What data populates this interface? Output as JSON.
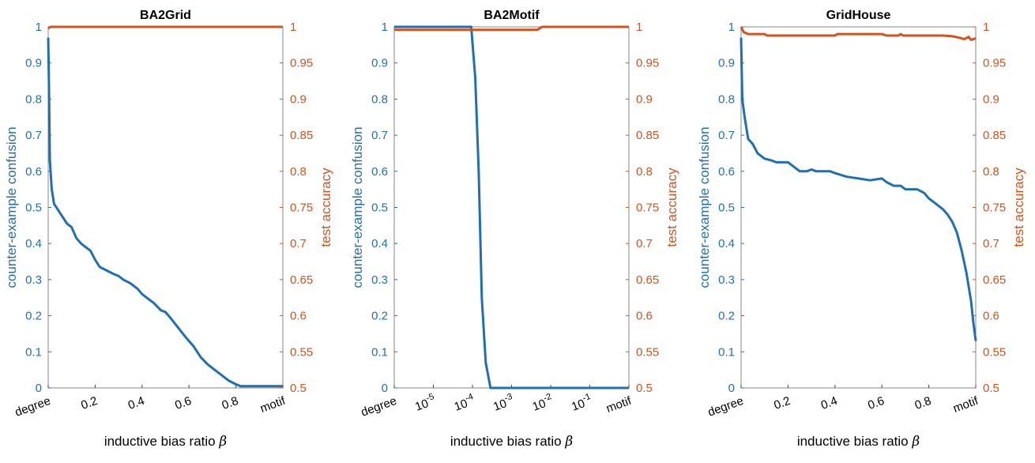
{
  "colors": {
    "confusion": "#1f6fb4",
    "accuracy": "#d4521c",
    "axis": "#888888"
  },
  "chart_data": [
    {
      "type": "line",
      "title": "BA2Grid",
      "xlabel": "inductive bias ratio",
      "xlabel_symbol": "β",
      "ylabel_left": "counter-example confusion",
      "ylabel_right": "test accuracy",
      "xscale": "linear",
      "xlim": [
        0,
        1
      ],
      "ylim_left": [
        0,
        1
      ],
      "ylim_right": [
        0.5,
        1
      ],
      "xticks": [
        {
          "v": 0,
          "label": "degree"
        },
        {
          "v": 0.2,
          "label": "0.2"
        },
        {
          "v": 0.4,
          "label": "0.4"
        },
        {
          "v": 0.6,
          "label": "0.6"
        },
        {
          "v": 0.8,
          "label": "0.8"
        },
        {
          "v": 1,
          "label": "motif"
        }
      ],
      "yticks_left": [
        "0",
        "0.1",
        "0.2",
        "0.3",
        "0.4",
        "0.5",
        "0.6",
        "0.7",
        "0.8",
        "0.9",
        "1"
      ],
      "yticks_right": [
        "0.5",
        "0.55",
        "0.6",
        "0.65",
        "0.7",
        "0.75",
        "0.8",
        "0.85",
        "0.9",
        "0.95",
        "1"
      ],
      "confusion": [
        [
          0,
          0.97
        ],
        [
          0.003,
          0.85
        ],
        [
          0.007,
          0.63
        ],
        [
          0.015,
          0.55
        ],
        [
          0.025,
          0.51
        ],
        [
          0.04,
          0.495
        ],
        [
          0.06,
          0.475
        ],
        [
          0.08,
          0.455
        ],
        [
          0.1,
          0.445
        ],
        [
          0.12,
          0.415
        ],
        [
          0.14,
          0.4
        ],
        [
          0.16,
          0.39
        ],
        [
          0.18,
          0.38
        ],
        [
          0.2,
          0.355
        ],
        [
          0.22,
          0.335
        ],
        [
          0.25,
          0.325
        ],
        [
          0.28,
          0.315
        ],
        [
          0.3,
          0.31
        ],
        [
          0.32,
          0.3
        ],
        [
          0.35,
          0.29
        ],
        [
          0.38,
          0.275
        ],
        [
          0.4,
          0.26
        ],
        [
          0.42,
          0.25
        ],
        [
          0.45,
          0.235
        ],
        [
          0.48,
          0.215
        ],
        [
          0.5,
          0.21
        ],
        [
          0.52,
          0.195
        ],
        [
          0.55,
          0.17
        ],
        [
          0.58,
          0.145
        ],
        [
          0.6,
          0.13
        ],
        [
          0.62,
          0.115
        ],
        [
          0.65,
          0.085
        ],
        [
          0.68,
          0.065
        ],
        [
          0.7,
          0.055
        ],
        [
          0.72,
          0.045
        ],
        [
          0.75,
          0.03
        ],
        [
          0.77,
          0.02
        ],
        [
          0.8,
          0.01
        ],
        [
          0.82,
          0.005
        ],
        [
          1,
          0.005
        ]
      ],
      "accuracy": [
        [
          0,
          0.998
        ],
        [
          0.01,
          1.0
        ],
        [
          1,
          1.0
        ]
      ]
    },
    {
      "type": "line",
      "title": "BA2Motif",
      "xlabel": "inductive bias ratio",
      "xlabel_symbol": "β",
      "ylabel_left": "counter-example confusion",
      "ylabel_right": "test accuracy",
      "xscale": "log",
      "xlim": [
        0,
        1
      ],
      "ylim_left": [
        0,
        1
      ],
      "ylim_right": [
        0.5,
        1
      ],
      "xticks": [
        {
          "v": 0,
          "label": "degree"
        },
        {
          "v": 0.1667,
          "label": "10",
          "exp": "-5"
        },
        {
          "v": 0.3333,
          "label": "10",
          "exp": "-4"
        },
        {
          "v": 0.5,
          "label": "10",
          "exp": "-3"
        },
        {
          "v": 0.6667,
          "label": "10",
          "exp": "-2"
        },
        {
          "v": 0.8333,
          "label": "10",
          "exp": "-1"
        },
        {
          "v": 1,
          "label": "motif"
        }
      ],
      "yticks_left": [
        "0",
        "0.1",
        "0.2",
        "0.3",
        "0.4",
        "0.5",
        "0.6",
        "0.7",
        "0.8",
        "0.9",
        "1"
      ],
      "yticks_right": [
        "0.5",
        "0.55",
        "0.6",
        "0.65",
        "0.7",
        "0.75",
        "0.8",
        "0.85",
        "0.9",
        "0.95",
        "1"
      ],
      "confusion": [
        [
          0,
          1.0
        ],
        [
          0.328,
          1.0
        ],
        [
          0.345,
          0.86
        ],
        [
          0.36,
          0.6
        ],
        [
          0.373,
          0.25
        ],
        [
          0.39,
          0.07
        ],
        [
          0.41,
          0.0
        ],
        [
          1,
          0.0
        ]
      ],
      "accuracy": [
        [
          0,
          0.996
        ],
        [
          0.61,
          0.996
        ],
        [
          0.63,
          1.0
        ],
        [
          1,
          1.0
        ]
      ]
    },
    {
      "type": "line",
      "title": "GridHouse",
      "xlabel": "inductive bias ratio",
      "xlabel_symbol": "β",
      "ylabel_left": "counter-example confusion",
      "ylabel_right": "test accuracy",
      "xscale": "linear",
      "xlim": [
        0,
        1
      ],
      "ylim_left": [
        0,
        1
      ],
      "ylim_right": [
        0.5,
        1
      ],
      "xticks": [
        {
          "v": 0,
          "label": "degree"
        },
        {
          "v": 0.2,
          "label": "0.2"
        },
        {
          "v": 0.4,
          "label": "0.4"
        },
        {
          "v": 0.6,
          "label": "0.6"
        },
        {
          "v": 0.8,
          "label": "0.8"
        },
        {
          "v": 1,
          "label": "motif"
        }
      ],
      "yticks_left": [
        "0",
        "0.1",
        "0.2",
        "0.3",
        "0.4",
        "0.5",
        "0.6",
        "0.7",
        "0.8",
        "0.9",
        "1"
      ],
      "yticks_right": [
        "0.5",
        "0.55",
        "0.6",
        "0.65",
        "0.7",
        "0.75",
        "0.8",
        "0.85",
        "0.9",
        "0.95",
        "1"
      ],
      "confusion": [
        [
          0,
          0.97
        ],
        [
          0.005,
          0.8
        ],
        [
          0.015,
          0.75
        ],
        [
          0.03,
          0.69
        ],
        [
          0.05,
          0.675
        ],
        [
          0.07,
          0.65
        ],
        [
          0.1,
          0.635
        ],
        [
          0.13,
          0.63
        ],
        [
          0.15,
          0.625
        ],
        [
          0.2,
          0.625
        ],
        [
          0.22,
          0.615
        ],
        [
          0.25,
          0.6
        ],
        [
          0.28,
          0.6
        ],
        [
          0.3,
          0.605
        ],
        [
          0.32,
          0.6
        ],
        [
          0.35,
          0.6
        ],
        [
          0.38,
          0.6
        ],
        [
          0.4,
          0.595
        ],
        [
          0.45,
          0.585
        ],
        [
          0.5,
          0.58
        ],
        [
          0.55,
          0.575
        ],
        [
          0.6,
          0.58
        ],
        [
          0.62,
          0.57
        ],
        [
          0.65,
          0.56
        ],
        [
          0.68,
          0.56
        ],
        [
          0.7,
          0.55
        ],
        [
          0.75,
          0.55
        ],
        [
          0.78,
          0.54
        ],
        [
          0.8,
          0.525
        ],
        [
          0.82,
          0.515
        ],
        [
          0.84,
          0.505
        ],
        [
          0.86,
          0.495
        ],
        [
          0.88,
          0.48
        ],
        [
          0.9,
          0.46
        ],
        [
          0.92,
          0.43
        ],
        [
          0.94,
          0.38
        ],
        [
          0.96,
          0.32
        ],
        [
          0.98,
          0.24
        ],
        [
          0.99,
          0.18
        ],
        [
          1,
          0.13
        ]
      ],
      "accuracy": [
        [
          0,
          1.0
        ],
        [
          0.01,
          0.993
        ],
        [
          0.03,
          0.99
        ],
        [
          0.1,
          0.99
        ],
        [
          0.11,
          0.988
        ],
        [
          0.4,
          0.988
        ],
        [
          0.41,
          0.99
        ],
        [
          0.6,
          0.99
        ],
        [
          0.62,
          0.988
        ],
        [
          0.67,
          0.988
        ],
        [
          0.68,
          0.99
        ],
        [
          0.69,
          0.988
        ],
        [
          0.86,
          0.988
        ],
        [
          0.9,
          0.987
        ],
        [
          0.93,
          0.985
        ],
        [
          0.95,
          0.983
        ],
        [
          0.97,
          0.986
        ],
        [
          0.98,
          0.982
        ],
        [
          1,
          0.984
        ]
      ]
    }
  ]
}
